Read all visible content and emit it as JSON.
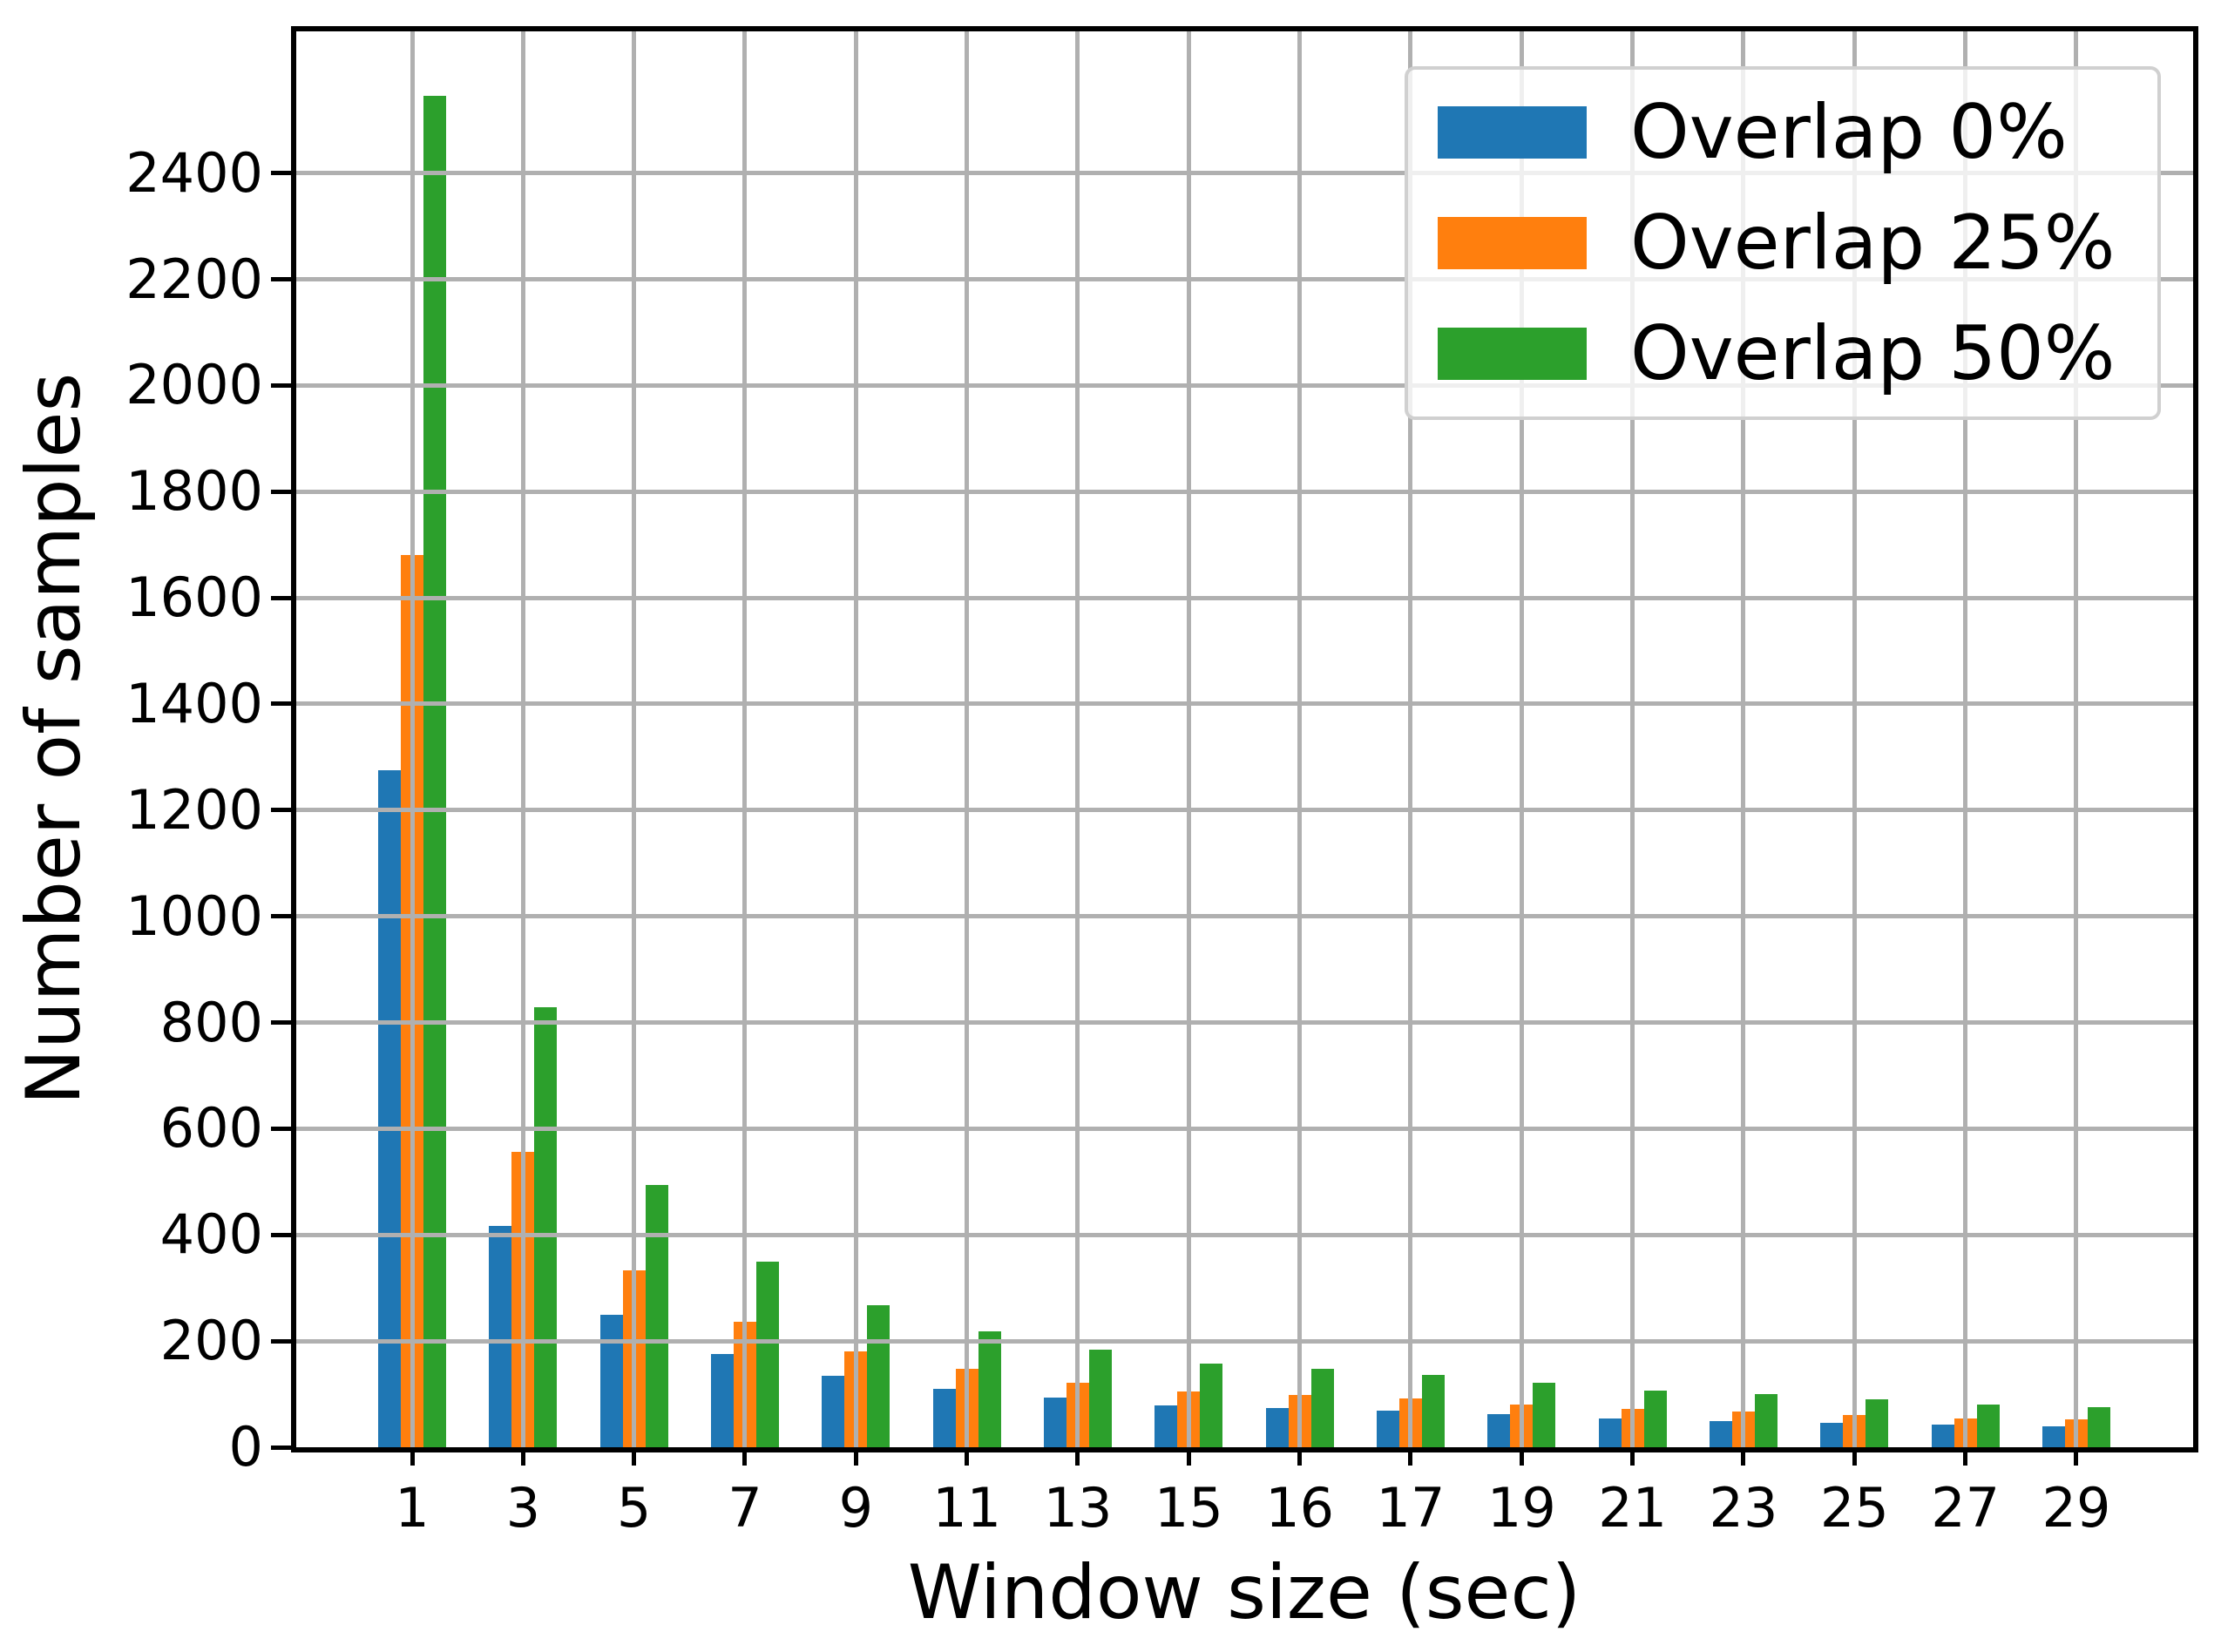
{
  "chart_data": {
    "type": "bar",
    "title": "",
    "xlabel": "Window size (sec)",
    "ylabel": "Number of samples",
    "categories": [
      "1",
      "3",
      "5",
      "7",
      "9",
      "11",
      "13",
      "15",
      "16",
      "17",
      "19",
      "21",
      "23",
      "25",
      "27",
      "29"
    ],
    "series": [
      {
        "name": "Overlap 0%",
        "color": "#1f77b4",
        "values": [
          1275,
          417,
          250,
          175,
          135,
          110,
          93,
          79,
          74,
          69,
          62,
          54,
          50,
          46,
          43,
          40
        ]
      },
      {
        "name": "Overlap 25%",
        "color": "#ff7f0e",
        "values": [
          1680,
          556,
          333,
          236,
          181,
          147,
          122,
          105,
          99,
          92,
          80,
          72,
          67,
          61,
          55,
          52
        ]
      },
      {
        "name": "Overlap 50%",
        "color": "#2ca02c",
        "values": [
          2545,
          829,
          494,
          349,
          268,
          218,
          184,
          157,
          147,
          136,
          121,
          107,
          100,
          90,
          81,
          76
        ]
      }
    ],
    "y_ticks": [
      0,
      200,
      400,
      600,
      800,
      1000,
      1200,
      1400,
      1600,
      1800,
      2000,
      2200,
      2400
    ],
    "ylim": [
      0,
      2667
    ],
    "grid": true,
    "grid_color": "#b0b0b0",
    "grid_above_bars": true,
    "legend_position": "upper right",
    "background_color": "#ffffff",
    "spine_color": "#000000"
  }
}
